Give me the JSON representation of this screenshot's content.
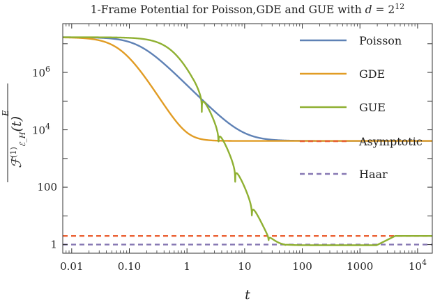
{
  "chart_data": {
    "type": "line",
    "title": "1-Frame Potential for Poisson,GDE and GUE with d = 2^12",
    "xlabel": "t",
    "ylabel": "F_{E_H}^{(1)}(t) (overline, superscript E)",
    "xscale": "log",
    "yscale": "log",
    "xlim": [
      0.007,
      18000
    ],
    "ylim": [
      0.5,
      50000000
    ],
    "grid": false,
    "legend_position": "top-right",
    "x_ticks": [
      {
        "value": 0.01,
        "label": "0.01"
      },
      {
        "value": 0.1,
        "label": "0.10"
      },
      {
        "value": 1,
        "label": "1"
      },
      {
        "value": 10,
        "label": "10"
      },
      {
        "value": 100,
        "label": "100"
      },
      {
        "value": 1000,
        "label": "1000"
      }
    ],
    "x_tick_special": {
      "value": 10000,
      "base": "10",
      "exp": "4"
    },
    "y_ticks": [
      {
        "value": 1,
        "label": "1"
      },
      {
        "value": 100,
        "label": "100"
      }
    ],
    "y_ticks_special": [
      {
        "value": 10000,
        "base": "10",
        "exp": "4"
      },
      {
        "value": 1000000,
        "base": "10",
        "exp": "6"
      }
    ],
    "d": 4096,
    "series": [
      {
        "name": "Poisson",
        "color": "#5e81b5",
        "style": "solid"
      },
      {
        "name": "GDE",
        "color": "#e19c24",
        "style": "solid"
      },
      {
        "name": "GUE",
        "color": "#8fb032",
        "style": "solid"
      },
      {
        "name": "Asymptotic",
        "color": "#eb6235",
        "style": "dashed",
        "value": 2
      },
      {
        "name": "Haar",
        "color": "#8778b3",
        "style": "dashed",
        "value": 1
      }
    ]
  }
}
